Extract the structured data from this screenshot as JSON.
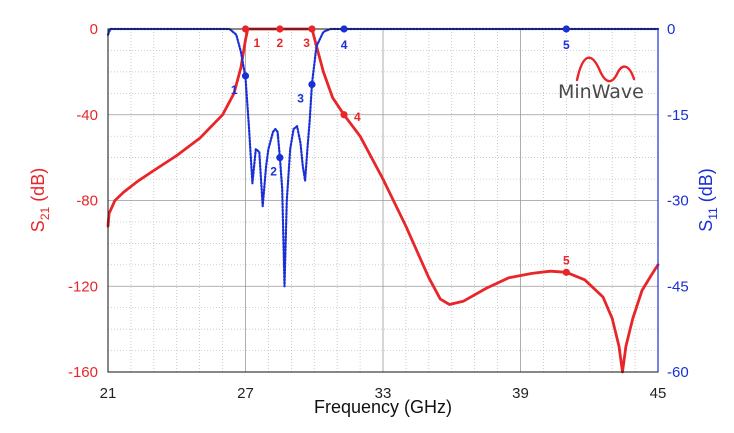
{
  "chart_data": {
    "type": "line",
    "xlabel": "Frequency (GHz)",
    "ylabel_left": {
      "main": "S",
      "sub": "21",
      "suffix": " (dB)"
    },
    "ylabel_right": {
      "main": "S",
      "sub": "11",
      "suffix": " (dB)"
    },
    "xlim": [
      21,
      45
    ],
    "ylim_left": [
      -160,
      0
    ],
    "ylim_right": [
      -60,
      0
    ],
    "x_ticks": [
      "21",
      "27",
      "33",
      "39",
      "45"
    ],
    "y_left_ticks": [
      "0",
      "-40",
      "-80",
      "-120",
      "-160"
    ],
    "y_right_ticks": [
      "0",
      "-15",
      "-30",
      "-45",
      "-60"
    ],
    "grid": true,
    "colors": {
      "s21": "#e8262a",
      "s11": "#1a2fd6",
      "grid": "#9a9a9a",
      "axis": "#111111"
    },
    "series": [
      {
        "key": "S21",
        "axis": "left",
        "style": "solid",
        "points": [
          [
            21.0,
            -92
          ],
          [
            21.05,
            -86
          ],
          [
            21.3,
            -80
          ],
          [
            21.7,
            -76
          ],
          [
            22.3,
            -71
          ],
          [
            23.0,
            -66
          ],
          [
            24.0,
            -59
          ],
          [
            25.0,
            -51
          ],
          [
            26.0,
            -40
          ],
          [
            26.5,
            -30
          ],
          [
            26.8,
            -18
          ],
          [
            27.0,
            -5
          ],
          [
            27.1,
            0
          ],
          [
            28.5,
            0
          ],
          [
            29.9,
            0
          ],
          [
            30.1,
            -8
          ],
          [
            30.4,
            -20
          ],
          [
            30.8,
            -32
          ],
          [
            31.3,
            -40
          ],
          [
            32.0,
            -50
          ],
          [
            33.0,
            -70
          ],
          [
            34.0,
            -92
          ],
          [
            35.0,
            -116
          ],
          [
            35.5,
            -126
          ],
          [
            35.9,
            -128.5
          ],
          [
            36.5,
            -127
          ],
          [
            37.5,
            -121
          ],
          [
            38.5,
            -116
          ],
          [
            39.5,
            -114
          ],
          [
            40.3,
            -113
          ],
          [
            41.0,
            -113.5
          ],
          [
            41.8,
            -117
          ],
          [
            42.6,
            -125
          ],
          [
            43.0,
            -135
          ],
          [
            43.3,
            -148
          ],
          [
            43.45,
            -160
          ],
          [
            43.6,
            -148
          ],
          [
            43.9,
            -135
          ],
          [
            44.3,
            -122
          ],
          [
            44.7,
            -115
          ],
          [
            45.0,
            -110
          ]
        ],
        "markers": [
          {
            "label": "1",
            "x": 27.0,
            "y": 0
          },
          {
            "label": "2",
            "x": 28.5,
            "y": 0
          },
          {
            "label": "3",
            "x": 29.9,
            "y": 0
          },
          {
            "label": "4",
            "x": 31.3,
            "y": -40
          },
          {
            "label": "5",
            "x": 41.0,
            "y": -113.5
          }
        ]
      },
      {
        "key": "S11",
        "axis": "right",
        "style": "dotted",
        "points": [
          [
            21.0,
            -1
          ],
          [
            21.1,
            0
          ],
          [
            26.3,
            0
          ],
          [
            26.6,
            -1
          ],
          [
            26.8,
            -4
          ],
          [
            27.0,
            -8.5
          ],
          [
            27.15,
            -17
          ],
          [
            27.3,
            -27
          ],
          [
            27.45,
            -21
          ],
          [
            27.6,
            -21.5
          ],
          [
            27.75,
            -31
          ],
          [
            27.9,
            -24
          ],
          [
            28.0,
            -21
          ],
          [
            28.2,
            -18
          ],
          [
            28.3,
            -17.5
          ],
          [
            28.4,
            -18
          ],
          [
            28.5,
            -22.5
          ],
          [
            28.6,
            -28
          ],
          [
            28.7,
            -45
          ],
          [
            28.8,
            -30
          ],
          [
            28.95,
            -21
          ],
          [
            29.1,
            -17.5
          ],
          [
            29.25,
            -17
          ],
          [
            29.4,
            -20
          ],
          [
            29.5,
            -24
          ],
          [
            29.6,
            -26.5
          ],
          [
            29.7,
            -21
          ],
          [
            29.8,
            -16
          ],
          [
            29.9,
            -9.5
          ],
          [
            30.1,
            -3
          ],
          [
            30.4,
            -0.5
          ],
          [
            30.7,
            0
          ],
          [
            45.0,
            0
          ]
        ],
        "markers": [
          {
            "label": "1",
            "x": 27.0,
            "y": -8.2
          },
          {
            "label": "2",
            "x": 28.5,
            "y": -22.5
          },
          {
            "label": "3",
            "x": 29.9,
            "y": -9.7
          },
          {
            "label": "4",
            "x": 31.3,
            "y": 0
          },
          {
            "label": "5",
            "x": 41.0,
            "y": 0
          }
        ]
      }
    ]
  },
  "logo": {
    "text": "MinWave",
    "color": "#e8262a"
  }
}
